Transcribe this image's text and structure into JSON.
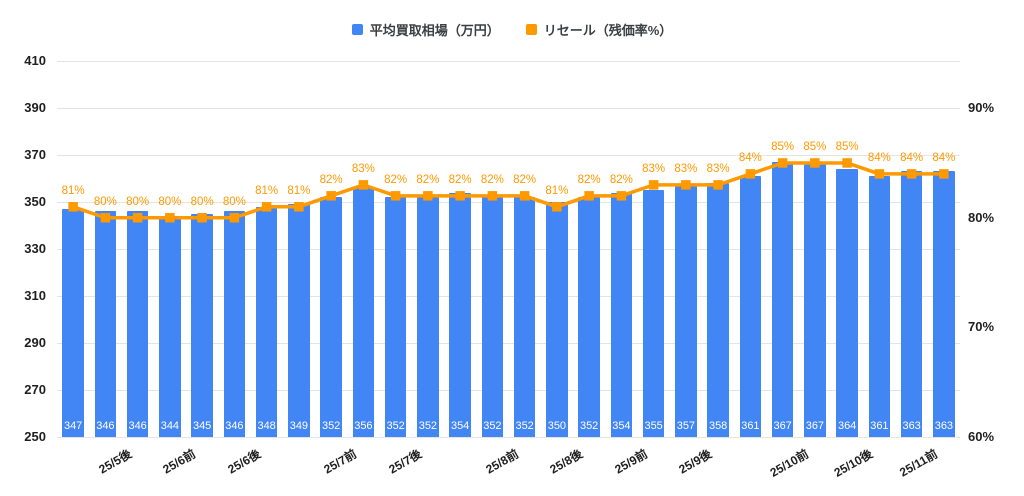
{
  "legend": {
    "items": [
      {
        "label": "平均買取相場（万円）",
        "color": "#4285F4"
      },
      {
        "label": "リセール（残価率%）",
        "color": "#FF9900"
      }
    ]
  },
  "colors": {
    "bar": "#4285F4",
    "line": "#FF9900",
    "grid": "#e4e4e4",
    "axis_text": "#1f1f1f",
    "bar_value_text": "#ffffff"
  },
  "chart_data": {
    "type": "combo",
    "title": "",
    "n_points": 28,
    "series": [
      {
        "name": "平均買取相場（万円）",
        "type": "bar",
        "axis": "left",
        "color": "#4285F4",
        "values": [
          347,
          346,
          346,
          344,
          345,
          346,
          348,
          349,
          352,
          356,
          352,
          352,
          354,
          352,
          352,
          350,
          352,
          354,
          355,
          357,
          358,
          361,
          367,
          367,
          364,
          361,
          363,
          363
        ]
      },
      {
        "name": "リセール（残価率%）",
        "type": "line",
        "axis": "right",
        "color": "#FF9900",
        "values": [
          81,
          80,
          80,
          80,
          80,
          80,
          81,
          81,
          82,
          83,
          82,
          82,
          82,
          82,
          82,
          81,
          82,
          82,
          83,
          83,
          83,
          84,
          85,
          85,
          85,
          84,
          84,
          84
        ],
        "label_suffix": "%"
      }
    ],
    "left_axis": {
      "min": 250,
      "max": 410,
      "step": 20,
      "ticks": [
        250,
        270,
        290,
        310,
        330,
        350,
        370,
        390,
        410
      ]
    },
    "right_axis": {
      "unit": "%",
      "ticks": [
        60,
        70,
        80,
        90
      ],
      "bottom_value": 60,
      "percent_span_full_height": 34.3
    },
    "x_axis": {
      "tick_labels": [
        {
          "after_bar": 2,
          "label": "25/5後"
        },
        {
          "after_bar": 4,
          "label": "25/6前"
        },
        {
          "after_bar": 6,
          "label": "25/6後"
        },
        {
          "after_bar": 9,
          "label": "25/7前"
        },
        {
          "after_bar": 11,
          "label": "25/7後"
        },
        {
          "after_bar": 14,
          "label": "25/8前"
        },
        {
          "after_bar": 16,
          "label": "25/8後"
        },
        {
          "after_bar": 18,
          "label": "25/9前"
        },
        {
          "after_bar": 20,
          "label": "25/9後"
        },
        {
          "after_bar": 23,
          "label": "25/10前"
        },
        {
          "after_bar": 25,
          "label": "25/10後"
        },
        {
          "after_bar": 27,
          "label": "25/11前"
        }
      ]
    },
    "grid": true,
    "legend_position": "top-center"
  }
}
